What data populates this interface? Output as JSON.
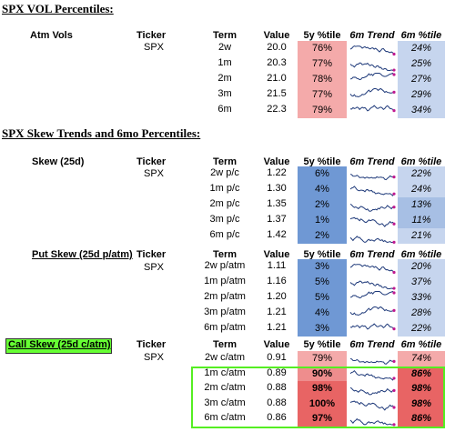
{
  "colors": {
    "red_light": "#f4aaaa",
    "red_mid": "#ee8d8d",
    "red_strong": "#e86464",
    "blue_light": "#c6d5ee",
    "blue_mid": "#a7bfe4",
    "blue_strong": "#6f98d4",
    "highlight_green": "#66ff33",
    "box_green": "#55ee22"
  },
  "vol": {
    "title": "SPX VOL Percentiles:",
    "headers": {
      "label": "Atm Vols",
      "ticker": "Ticker",
      "term": "Term",
      "value": "Value",
      "pct5y": "5y %tile",
      "trend": "6m Trend",
      "pct6m": "6m %tile"
    },
    "ticker": "SPX",
    "rows": [
      {
        "term": "2w",
        "value": "20.0",
        "pct5y": "76%",
        "pct6m": "24%"
      },
      {
        "term": "1m",
        "value": "20.3",
        "pct5y": "77%",
        "pct6m": "25%"
      },
      {
        "term": "2m",
        "value": "21.0",
        "pct5y": "78%",
        "pct6m": "27%"
      },
      {
        "term": "3m",
        "value": "21.5",
        "pct5y": "77%",
        "pct6m": "29%"
      },
      {
        "term": "6m",
        "value": "22.3",
        "pct5y": "79%",
        "pct6m": "34%"
      }
    ]
  },
  "skew_title": "SPX Skew Trends and 6mo Percentiles:",
  "skew": {
    "headers": {
      "label": "Skew (25d)",
      "ticker": "Ticker",
      "term": "Term",
      "value": "Value",
      "pct5y": "5y %tile",
      "trend": "6m Trend",
      "pct6m": "6m %tile"
    },
    "ticker": "SPX",
    "rows": [
      {
        "term": "2w p/c",
        "value": "1.22",
        "pct5y": "6%",
        "pct6m": "22%"
      },
      {
        "term": "1m p/c",
        "value": "1.30",
        "pct5y": "4%",
        "pct6m": "24%"
      },
      {
        "term": "2m p/c",
        "value": "1.35",
        "pct5y": "2%",
        "pct6m": "13%"
      },
      {
        "term": "3m p/c",
        "value": "1.37",
        "pct5y": "1%",
        "pct6m": "11%"
      },
      {
        "term": "6m p/c",
        "value": "1.42",
        "pct5y": "2%",
        "pct6m": "21%"
      }
    ]
  },
  "put": {
    "headers": {
      "label": "Put Skew (25d p/atm)",
      "ticker": "Ticker",
      "term": "Term",
      "value": "Value",
      "pct5y": "5y %tile",
      "trend": "6m Trend",
      "pct6m": "6m %tile"
    },
    "ticker": "SPX",
    "rows": [
      {
        "term": "2w p/atm",
        "value": "1.11",
        "pct5y": "3%",
        "pct6m": "20%"
      },
      {
        "term": "1m p/atm",
        "value": "1.16",
        "pct5y": "5%",
        "pct6m": "37%"
      },
      {
        "term": "2m p/atm",
        "value": "1.20",
        "pct5y": "5%",
        "pct6m": "33%"
      },
      {
        "term": "3m p/atm",
        "value": "1.21",
        "pct5y": "4%",
        "pct6m": "28%"
      },
      {
        "term": "6m p/atm",
        "value": "1.21",
        "pct5y": "3%",
        "pct6m": "22%"
      }
    ]
  },
  "call": {
    "headers": {
      "label": "Call Skew (25d c/atm)",
      "ticker": "Ticker",
      "term": "Term",
      "value": "Value",
      "pct5y": "5y %tile",
      "trend": "6m Trend",
      "pct6m": "6m %tile"
    },
    "ticker": "SPX",
    "rows": [
      {
        "term": "2w c/atm",
        "value": "0.91",
        "pct5y": "79%",
        "pct6m": "74%"
      },
      {
        "term": "1m c/atm",
        "value": "0.89",
        "pct5y": "90%",
        "pct6m": "86%"
      },
      {
        "term": "2m c/atm",
        "value": "0.88",
        "pct5y": "98%",
        "pct6m": "98%"
      },
      {
        "term": "3m c/atm",
        "value": "0.88",
        "pct5y": "100%",
        "pct6m": "98%"
      },
      {
        "term": "6m c/atm",
        "value": "0.86",
        "pct5y": "97%",
        "pct6m": "86%"
      }
    ]
  }
}
